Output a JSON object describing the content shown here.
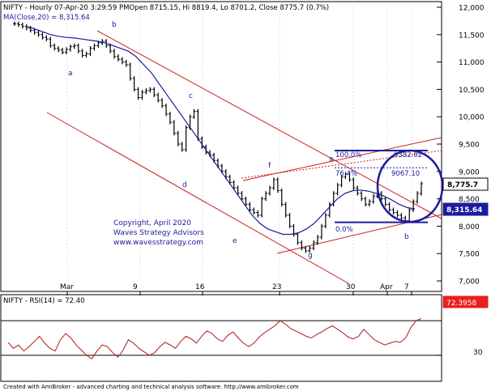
{
  "header": {
    "title": "NIFTY - Hourly 07-Apr-20 3:29:59 PMOpen 8715.15, Hi 8819.4, Lo 8701.2, Close 8775.7 (0.7%)",
    "ma_label": "MA(Close,20) = 8,315.64"
  },
  "chart_data": [
    {
      "type": "ohlc",
      "title": "NIFTY - Hourly 07-Apr-20 3:29:59 PMOpen 8715.15, Hi 8819.4, Lo 8701.2, Close 8775.7 (0.7%)",
      "ylim": [
        7000,
        12000
      ],
      "y_ticks": [
        "7,000",
        "7,500",
        "8,000",
        "8,500",
        "9,000",
        "9,500",
        "10,000",
        "10,500",
        "11,000",
        "11,500",
        "12,000"
      ],
      "x_ticks": [
        "Mar",
        "9",
        "16",
        "23",
        "30",
        "Apr",
        "7"
      ],
      "last_close": "8,775.7",
      "series": [
        {
          "name": "NIFTY",
          "color": "#000000",
          "close": [
            11700,
            11680,
            11650,
            11620,
            11580,
            11540,
            11500,
            11450,
            11420,
            11300,
            11250,
            11220,
            11180,
            11230,
            11280,
            11300,
            11200,
            11120,
            11150,
            11250,
            11300,
            11350,
            11380,
            11300,
            11200,
            11100,
            11050,
            11000,
            10950,
            10700,
            10500,
            10350,
            10450,
            10480,
            10500,
            10400,
            10300,
            10200,
            10050,
            9900,
            9700,
            9500,
            9400,
            9800,
            10000,
            10100,
            9600,
            9450,
            9350,
            9300,
            9200,
            9100,
            9000,
            8900,
            8800,
            8700,
            8600,
            8500,
            8400,
            8300,
            8250,
            8200,
            8500,
            8600,
            8700,
            8850,
            8650,
            8400,
            8200,
            8000,
            7850,
            7700,
            7600,
            7550,
            7600,
            7700,
            7800,
            8000,
            8200,
            8400,
            8600,
            8750,
            8900,
            8950,
            8850,
            8700,
            8600,
            8500,
            8400,
            8450,
            8550,
            8600,
            8500,
            8400,
            8300,
            8250,
            8200,
            8150,
            8100,
            8300,
            8450,
            8600,
            8776
          ]
        },
        {
          "name": "MA(Close,20)",
          "color": "#1c1c9c",
          "close": [
            11650,
            11600,
            11550,
            11500,
            11470,
            11450,
            11440,
            11420,
            11400,
            11380,
            11350,
            11300,
            11250,
            11200,
            11100,
            10950,
            10800,
            10600,
            10400,
            10200,
            10000,
            9800,
            9600,
            9400,
            9200,
            9000,
            8800,
            8600,
            8400,
            8200,
            8050,
            7950,
            7900,
            7850,
            7850,
            7880,
            7950,
            8050,
            8200,
            8350,
            8500,
            8600,
            8650,
            8660,
            8640,
            8600,
            8550,
            8480,
            8400,
            8340,
            8316
          ],
          "last": "8,315.64"
        }
      ],
      "fibonacci": {
        "levels": [
          {
            "label": "100.0%",
            "value": 9382.02,
            "value_label": "9382.02"
          },
          {
            "label": "76.4%",
            "value": 9067.1,
            "value_label": "9067.10"
          },
          {
            "label": "0.0%",
            "value": 8070
          }
        ]
      },
      "wave_labels": [
        "a",
        "b",
        "c",
        "d",
        "e",
        "f",
        "g",
        "a",
        "b"
      ],
      "annotations": [
        "Copyright, April 2020",
        "Waves Strategy Advisors",
        "www.wavesstrategy.com"
      ]
    },
    {
      "type": "line",
      "title": "NIFTY - RSI(14) = 72.40",
      "series": [
        {
          "name": "RSI(14)",
          "color": "#b01818",
          "values": [
            45,
            38,
            42,
            35,
            40,
            46,
            52,
            44,
            38,
            35,
            48,
            55,
            50,
            42,
            36,
            30,
            26,
            35,
            42,
            40,
            33,
            28,
            36,
            48,
            44,
            38,
            34,
            30,
            33,
            40,
            45,
            42,
            38,
            46,
            52,
            49,
            44,
            52,
            58,
            55,
            49,
            46,
            53,
            57,
            50,
            44,
            40,
            44,
            51,
            56,
            60,
            64,
            70,
            66,
            61,
            58,
            55,
            52,
            50,
            54,
            57,
            61,
            64,
            60,
            56,
            51,
            49,
            52,
            60,
            54,
            48,
            45,
            42,
            44,
            46,
            45,
            50,
            62,
            70,
            72.4
          ],
          "last": "72.3958"
        }
      ],
      "ylim": [
        0,
        100
      ],
      "y_ticks": [
        "30"
      ],
      "reference_levels": [
        70,
        30
      ]
    }
  ],
  "footer": {
    "text": "Created with AmiBroker - advanced charting and technical analysis software. http://www.amibroker.com"
  }
}
